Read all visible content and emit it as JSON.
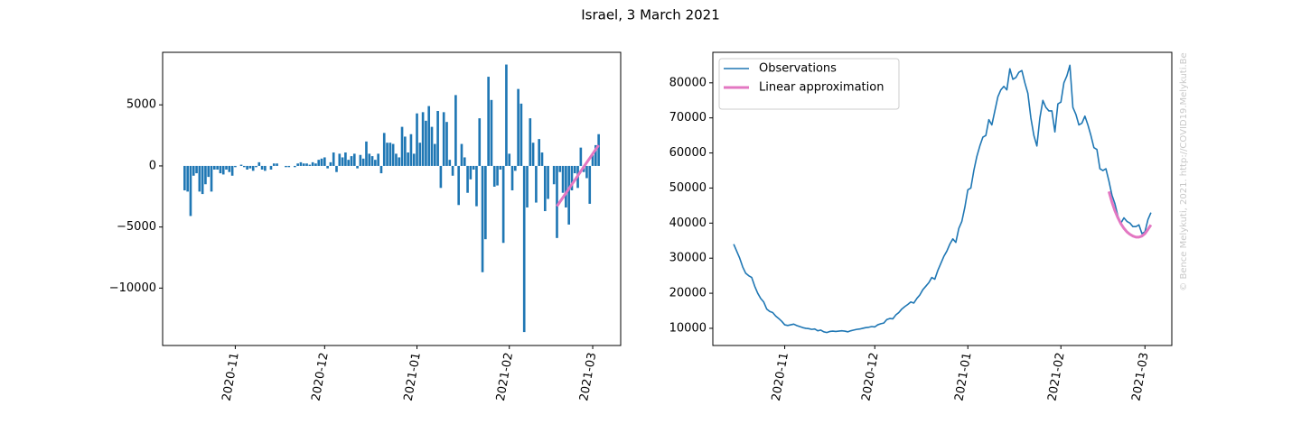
{
  "title": "Israel, 3 March 2021",
  "chart_data": [
    {
      "type": "bar",
      "categories": [
        null,
        null,
        null,
        null,
        null,
        null,
        null,
        null,
        null,
        null,
        null,
        null,
        null,
        null,
        null,
        null,
        null,
        "2020-11",
        null,
        null,
        null,
        null,
        null,
        null,
        null,
        null,
        null,
        null,
        null,
        null,
        null,
        null,
        null,
        null,
        null,
        null,
        null,
        null,
        null,
        null,
        null,
        null,
        null,
        null,
        null,
        null,
        null,
        "2020-12",
        null,
        null,
        null,
        null,
        null,
        null,
        null,
        null,
        null,
        null,
        null,
        null,
        null,
        null,
        null,
        null,
        null,
        null,
        null,
        null,
        null,
        null,
        null,
        null,
        null,
        null,
        null,
        null,
        null,
        null,
        "2021-01",
        null,
        null,
        null,
        null,
        null,
        null,
        null,
        null,
        null,
        null,
        null,
        null,
        null,
        null,
        null,
        null,
        null,
        null,
        null,
        null,
        null,
        null,
        null,
        null,
        null,
        null,
        null,
        null,
        null,
        null,
        "2021-02",
        null,
        null,
        null,
        null,
        null,
        null,
        null,
        null,
        null,
        null,
        null,
        null,
        null,
        null,
        null,
        null,
        null,
        null,
        null,
        null,
        null,
        null,
        null,
        null,
        null,
        null,
        null,
        "2021-03",
        null,
        null
      ],
      "series": [
        {
          "type": "bar",
          "color": "#1f77b4",
          "values": [
            -2000,
            -2100,
            -4100,
            -800,
            -600,
            -2100,
            -2300,
            -1500,
            -900,
            -2100,
            -300,
            -300,
            -600,
            -700,
            -300,
            -500,
            -800,
            -100,
            0,
            100,
            -100,
            -300,
            -200,
            -400,
            -100,
            300,
            -300,
            -400,
            0,
            -300,
            200,
            200,
            0,
            0,
            -100,
            -100,
            0,
            -100,
            200,
            300,
            200,
            200,
            100,
            300,
            200,
            500,
            600,
            700,
            -200,
            300,
            1100,
            -500,
            1000,
            700,
            1100,
            500,
            800,
            1000,
            -200,
            900,
            600,
            2000,
            1000,
            800,
            500,
            1000,
            -600,
            2700,
            1900,
            1900,
            1800,
            1000,
            700,
            3200,
            2400,
            1100,
            2600,
            1000,
            4300,
            1900,
            4400,
            3700,
            4900,
            3200,
            1800,
            4500,
            -1800,
            4400,
            3600,
            500,
            -800,
            5800,
            -3200,
            1800,
            700,
            -2200,
            -1100,
            -300,
            -3300,
            3900,
            -8700,
            -6000,
            7300,
            5400,
            -1700,
            -1600,
            -300,
            -6300,
            8300,
            1000,
            -2000,
            -400,
            6300,
            5100,
            -13600,
            -3400,
            3900,
            1900,
            -3000,
            2200,
            1100,
            -3700,
            -2700,
            0,
            -1500,
            -5900,
            -500,
            -2200,
            -3400,
            -4800,
            -2000,
            -600,
            -1800,
            1500,
            -500,
            -1000,
            -3100,
            900,
            1700,
            2600
          ]
        },
        {
          "type": "line",
          "color": "#e377c2",
          "linewidth": 3,
          "values": [
            null,
            null,
            null,
            null,
            null,
            null,
            null,
            null,
            null,
            null,
            null,
            null,
            null,
            null,
            null,
            null,
            null,
            null,
            null,
            null,
            null,
            null,
            null,
            null,
            null,
            null,
            null,
            null,
            null,
            null,
            null,
            null,
            null,
            null,
            null,
            null,
            null,
            null,
            null,
            null,
            null,
            null,
            null,
            null,
            null,
            null,
            null,
            null,
            null,
            null,
            null,
            null,
            null,
            null,
            null,
            null,
            null,
            null,
            null,
            null,
            null,
            null,
            null,
            null,
            null,
            null,
            null,
            null,
            null,
            null,
            null,
            null,
            null,
            null,
            null,
            null,
            null,
            null,
            null,
            null,
            null,
            null,
            null,
            null,
            null,
            null,
            null,
            null,
            null,
            null,
            null,
            null,
            null,
            null,
            null,
            null,
            null,
            null,
            null,
            null,
            null,
            null,
            null,
            null,
            null,
            null,
            null,
            null,
            null,
            null,
            null,
            null,
            null,
            null,
            null,
            null,
            null,
            null,
            null,
            null,
            null,
            null,
            null,
            null,
            null,
            -3300,
            -2940,
            -2590,
            -2230,
            -1870,
            -1510,
            -1160,
            -800,
            -440,
            -80,
            280,
            630,
            990,
            1350,
            1700
          ]
        }
      ],
      "ylim": [
        -14700,
        9300
      ],
      "yticks": [
        {
          "value": -10000,
          "label": "−10000"
        },
        {
          "value": -5000,
          "label": "−5000"
        },
        0,
        5000
      ]
    },
    {
      "type": "line",
      "categories": [
        null,
        null,
        null,
        null,
        null,
        null,
        null,
        null,
        null,
        null,
        null,
        null,
        null,
        null,
        null,
        null,
        null,
        "2020-11",
        null,
        null,
        null,
        null,
        null,
        null,
        null,
        null,
        null,
        null,
        null,
        null,
        null,
        null,
        null,
        null,
        null,
        null,
        null,
        null,
        null,
        null,
        null,
        null,
        null,
        null,
        null,
        null,
        null,
        "2020-12",
        null,
        null,
        null,
        null,
        null,
        null,
        null,
        null,
        null,
        null,
        null,
        null,
        null,
        null,
        null,
        null,
        null,
        null,
        null,
        null,
        null,
        null,
        null,
        null,
        null,
        null,
        null,
        null,
        null,
        null,
        "2021-01",
        null,
        null,
        null,
        null,
        null,
        null,
        null,
        null,
        null,
        null,
        null,
        null,
        null,
        null,
        null,
        null,
        null,
        null,
        null,
        null,
        null,
        null,
        null,
        null,
        null,
        null,
        null,
        null,
        null,
        null,
        "2021-02",
        null,
        null,
        null,
        null,
        null,
        null,
        null,
        null,
        null,
        null,
        null,
        null,
        null,
        null,
        null,
        null,
        null,
        null,
        null,
        null,
        null,
        null,
        null,
        null,
        null,
        null,
        null,
        "2021-03",
        null,
        null
      ],
      "series": [
        {
          "name": "Observations",
          "type": "line",
          "color": "#1f77b4",
          "linewidth": 1.6,
          "values": [
            34000,
            32000,
            30000,
            27500,
            25700,
            25000,
            24500,
            22000,
            20000,
            18500,
            17500,
            15500,
            14800,
            14500,
            13500,
            12800,
            12000,
            11000,
            10800,
            11000,
            11200,
            10800,
            10500,
            10200,
            10000,
            9900,
            9700,
            9800,
            9300,
            9500,
            9000,
            8800,
            9100,
            9200,
            9100,
            9200,
            9300,
            9200,
            9000,
            9300,
            9500,
            9700,
            9800,
            10000,
            10200,
            10300,
            10500,
            10400,
            11000,
            11300,
            11500,
            12500,
            12800,
            12700,
            13800,
            14500,
            15500,
            16200,
            16800,
            17500,
            17200,
            18500,
            19500,
            21000,
            22000,
            23000,
            24500,
            24000,
            26500,
            28500,
            30500,
            32000,
            34000,
            35500,
            34500,
            38500,
            40500,
            44500,
            49500,
            50000,
            55000,
            59000,
            62000,
            64500,
            65000,
            69500,
            68000,
            72000,
            76000,
            78000,
            79000,
            78000,
            84000,
            81000,
            81500,
            83000,
            83500,
            80000,
            77000,
            70000,
            65000,
            62000,
            70000,
            75000,
            73000,
            72000,
            72000,
            66000,
            74000,
            74500,
            80000,
            82000,
            85000,
            73000,
            71000,
            68000,
            68500,
            70500,
            68000,
            65000,
            61500,
            61000,
            55500,
            55000,
            55500,
            52000,
            48000,
            45500,
            42000,
            40000,
            41500,
            40500,
            40000,
            39000,
            39000,
            39500,
            37000,
            37500,
            41000,
            43000
          ]
        },
        {
          "name": "Linear approximation",
          "type": "line",
          "color": "#e377c2",
          "linewidth": 3,
          "values": [
            null,
            null,
            null,
            null,
            null,
            null,
            null,
            null,
            null,
            null,
            null,
            null,
            null,
            null,
            null,
            null,
            null,
            null,
            null,
            null,
            null,
            null,
            null,
            null,
            null,
            null,
            null,
            null,
            null,
            null,
            null,
            null,
            null,
            null,
            null,
            null,
            null,
            null,
            null,
            null,
            null,
            null,
            null,
            null,
            null,
            null,
            null,
            null,
            null,
            null,
            null,
            null,
            null,
            null,
            null,
            null,
            null,
            null,
            null,
            null,
            null,
            null,
            null,
            null,
            null,
            null,
            null,
            null,
            null,
            null,
            null,
            null,
            null,
            null,
            null,
            null,
            null,
            null,
            null,
            null,
            null,
            null,
            null,
            null,
            null,
            null,
            null,
            null,
            null,
            null,
            null,
            null,
            null,
            null,
            null,
            null,
            null,
            null,
            null,
            null,
            null,
            null,
            null,
            null,
            null,
            null,
            null,
            null,
            null,
            null,
            null,
            null,
            null,
            null,
            null,
            null,
            null,
            null,
            null,
            null,
            null,
            null,
            null,
            null,
            null,
            49000,
            46000,
            43500,
            41500,
            39800,
            38500,
            37500,
            36800,
            36300,
            36000,
            36000,
            36300,
            37000,
            38200,
            39500
          ]
        }
      ],
      "legend": "upper left",
      "ylim": [
        5100,
        88700
      ],
      "yticks": [
        10000,
        20000,
        30000,
        40000,
        50000,
        60000,
        70000,
        80000
      ],
      "annotation": "© Bence Melykuti, 2021. http://COVID19.Melykuti.Be"
    }
  ]
}
